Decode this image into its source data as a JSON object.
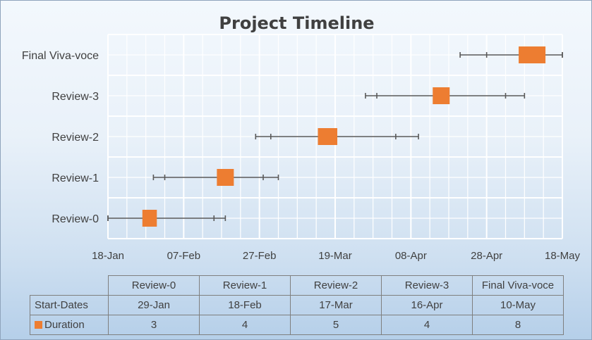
{
  "colors": {
    "bar": "#ed7d31",
    "grid": "#ffffff",
    "error_bar": "#595959"
  },
  "chart_data": {
    "type": "scatter",
    "title": "Project Timeline",
    "categories": [
      "Review-0",
      "Review-1",
      "Review-2",
      "Review-3",
      "Final Viva-voce"
    ],
    "series": [
      {
        "name": "Duration",
        "x": [
          "29-Jan",
          "18-Feb",
          "17-Mar",
          "16-Apr",
          "10-May"
        ],
        "values": [
          3,
          4,
          5,
          4,
          8
        ],
        "error_bars": [
          {
            "low": "18-Jan",
            "inner_low": "18-Jan",
            "inner_high": "15-Feb",
            "high": "18-Feb"
          },
          {
            "low": "30-Jan",
            "inner_low": "02-Feb",
            "inner_high": "28-Feb",
            "high": "04-Mar"
          },
          {
            "low": "26-Feb",
            "inner_low": "02-Mar",
            "inner_high": "04-Apr",
            "high": "10-Apr"
          },
          {
            "low": "27-Mar",
            "inner_low": "30-Mar",
            "inner_high": "03-May",
            "high": "08-May"
          },
          {
            "low": "21-Apr",
            "inner_low": "28-Apr",
            "inner_high": "18-May",
            "high": "18-May"
          }
        ]
      }
    ],
    "x_ticks": [
      "18-Jan",
      "07-Feb",
      "27-Feb",
      "19-Mar",
      "08-Apr",
      "28-Apr",
      "18-May"
    ],
    "xlim": [
      "18-Jan",
      "18-May"
    ],
    "grid": true,
    "table": {
      "row_labels": [
        "Start-Dates",
        "Duration"
      ],
      "start_dates": [
        "29-Jan",
        "18-Feb",
        "17-Mar",
        "16-Apr",
        "10-May"
      ],
      "durations": [
        3,
        4,
        5,
        4,
        8
      ]
    }
  }
}
